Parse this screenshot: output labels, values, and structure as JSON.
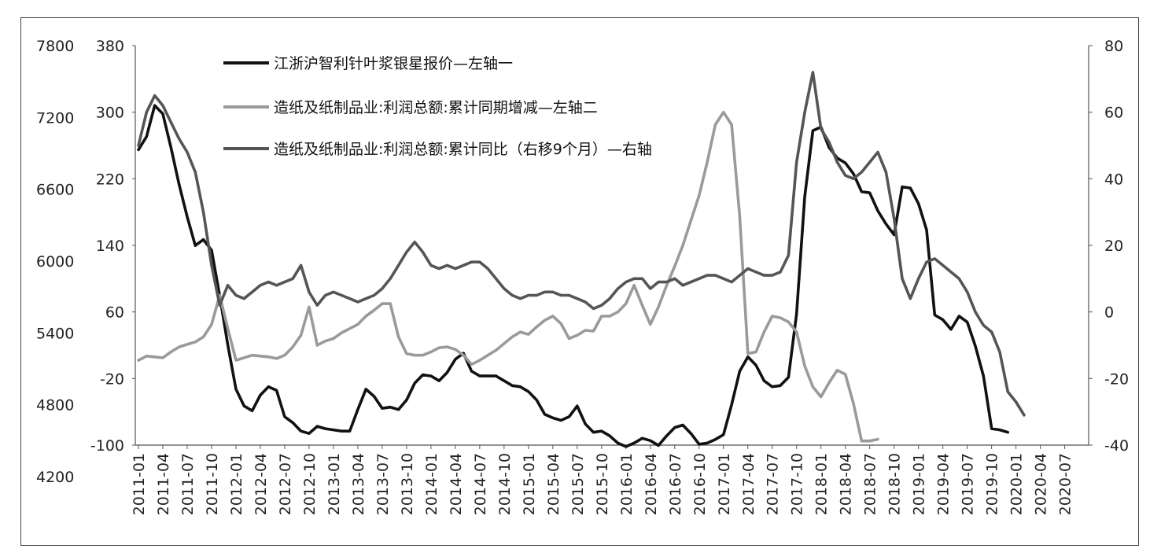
{
  "chart_data": {
    "type": "line",
    "legend": {
      "placement": "top-left",
      "entries": [
        {
          "key": "price",
          "label": "江浙沪智利针叶浆银星报价—左轴一"
        },
        {
          "key": "profit_change",
          "label": "造纸及纸制品业:利润总额:累计同期增减—左轴二"
        },
        {
          "key": "profit_yoy",
          "label": "造纸及纸制品业:利润总额:累计同比（右移9个月）—右轴"
        }
      ]
    },
    "left_axis_1": {
      "ylim": [
        4200,
        7800
      ],
      "ticks": [
        "7800",
        "7200",
        "6600",
        "6000",
        "5400",
        "4800",
        "4200"
      ]
    },
    "left_axis_2": {
      "ylim": [
        -100,
        380
      ],
      "ticks": [
        "380",
        "300",
        "220",
        "140",
        "60",
        "-20",
        "-100"
      ]
    },
    "right_axis": {
      "ylim": [
        -40,
        80
      ],
      "ticks": [
        "80",
        "60",
        "40",
        "20",
        "0",
        "-20",
        "-40"
      ]
    },
    "x_ticks": [
      "2011-01",
      "2011-04",
      "2011-07",
      "2011-10",
      "2012-01",
      "2012-04",
      "2012-07",
      "2012-10",
      "2013-01",
      "2013-04",
      "2013-07",
      "2013-10",
      "2014-01",
      "2014-04",
      "2014-07",
      "2014-10",
      "2015-01",
      "2015-04",
      "2015-07",
      "2015-10",
      "2016-01",
      "2016-04",
      "2016-07",
      "2016-10",
      "2017-01",
      "2017-04",
      "2017-07",
      "2017-10",
      "2018-01",
      "2018-04",
      "2018-07",
      "2018-10",
      "2019-01",
      "2019-04",
      "2019-07",
      "2019-10",
      "2020-01",
      "2020-04",
      "2020-07"
    ],
    "grid": false,
    "series": [
      {
        "key": "price",
        "name": "江浙沪智利针叶浆银星报价—左轴一",
        "axis": "left_axis_1",
        "color": "#111111",
        "start": "2011-01",
        "values": [
          6930,
          7040,
          7300,
          7230,
          6950,
          6640,
          6370,
          6130,
          6180,
          6090,
          5710,
          5300,
          4930,
          4790,
          4750,
          4880,
          4950,
          4920,
          4700,
          4650,
          4580,
          4560,
          4620,
          4600,
          4590,
          4580,
          4580,
          4760,
          4930,
          4870,
          4770,
          4780,
          4760,
          4840,
          4980,
          5050,
          5040,
          5000,
          5070,
          5180,
          5230,
          5080,
          5040,
          5040,
          5040,
          5000,
          4960,
          4950,
          4910,
          4840,
          4720,
          4690,
          4670,
          4700,
          4790,
          4640,
          4570,
          4580,
          4540,
          4480,
          4450,
          4480,
          4520,
          4500,
          4460,
          4540,
          4610,
          4630,
          4560,
          4470,
          4480,
          4510,
          4550,
          4800,
          5080,
          5200,
          5130,
          5000,
          4950,
          4960,
          5030,
          5560,
          6540,
          7090,
          7120,
          6950,
          6860,
          6820,
          6730,
          6580,
          6570,
          6420,
          6310,
          6220,
          6620,
          6610,
          6480,
          6260,
          5550,
          5510,
          5430,
          5540,
          5490,
          5290,
          5040,
          4600,
          4590,
          4570
        ]
      },
      {
        "key": "profit_change",
        "name": "造纸及纸制品业:利润总额:累计同期增减—左轴二",
        "axis": "left_axis_2",
        "color": "#9a9a9a",
        "start": "2011-01",
        "values": [
          2,
          7,
          6,
          5,
          12,
          18,
          21,
          24,
          30,
          45,
          80,
          40,
          2,
          5,
          8,
          7,
          6,
          4,
          8,
          18,
          32,
          66,
          20,
          25,
          28,
          35,
          40,
          45,
          55,
          62,
          70,
          70,
          30,
          10,
          8,
          8,
          12,
          17,
          18,
          15,
          8,
          -3,
          2,
          8,
          14,
          22,
          30,
          36,
          33,
          42,
          50,
          55,
          46,
          28,
          32,
          38,
          37,
          55,
          55,
          60,
          70,
          92,
          68,
          45,
          66,
          92,
          115,
          140,
          170,
          200,
          240,
          285,
          300,
          285,
          175,
          10,
          12,
          36,
          55,
          53,
          48,
          36,
          -5,
          -30,
          -42,
          -25,
          -10,
          -15,
          -50,
          -95,
          -95,
          -93
        ]
      },
      {
        "key": "profit_yoy",
        "name": "造纸及纸制品业:利润总额:累计同比（右移9个月）—右轴",
        "axis": "right_axis",
        "color": "#555555",
        "start": "2011-01",
        "values": [
          50,
          60,
          65,
          62,
          57,
          52,
          48,
          42,
          30,
          14,
          2,
          8,
          5,
          4,
          6,
          8,
          9,
          8,
          9,
          10,
          14,
          6,
          2,
          5,
          6,
          5,
          4,
          3,
          4,
          5,
          7,
          10,
          14,
          18,
          21,
          18,
          14,
          13,
          14,
          13,
          14,
          15,
          15,
          13,
          10,
          7,
          5,
          4,
          5,
          5,
          6,
          6,
          5,
          5,
          4,
          3,
          1,
          2,
          4,
          7,
          9,
          10,
          10,
          7,
          9,
          9,
          10,
          8,
          9,
          10,
          11,
          11,
          10,
          9,
          11,
          13,
          12,
          11,
          11,
          12,
          17,
          45,
          60,
          72,
          55,
          51,
          45,
          41,
          40,
          42,
          45,
          48,
          42,
          28,
          10,
          4,
          10,
          15,
          16,
          14,
          12,
          10,
          6,
          0,
          -4,
          -6,
          -12,
          -24,
          -27,
          -31
        ]
      }
    ]
  }
}
